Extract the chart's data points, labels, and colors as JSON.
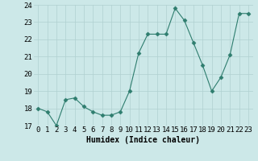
{
  "x": [
    0,
    1,
    2,
    3,
    4,
    5,
    6,
    7,
    8,
    9,
    10,
    11,
    12,
    13,
    14,
    15,
    16,
    17,
    18,
    19,
    20,
    21,
    22,
    23
  ],
  "y": [
    18.0,
    17.8,
    17.0,
    18.5,
    18.6,
    18.1,
    17.8,
    17.6,
    17.6,
    17.8,
    19.0,
    21.2,
    22.3,
    22.3,
    22.3,
    23.8,
    23.1,
    21.8,
    20.5,
    19.0,
    19.8,
    21.1,
    23.5,
    23.5
  ],
  "xlabel": "Humidex (Indice chaleur)",
  "ylim": [
    17,
    24
  ],
  "xlim": [
    -0.5,
    23.5
  ],
  "yticks": [
    17,
    18,
    19,
    20,
    21,
    22,
    23,
    24
  ],
  "xticks": [
    0,
    1,
    2,
    3,
    4,
    5,
    6,
    7,
    8,
    9,
    10,
    11,
    12,
    13,
    14,
    15,
    16,
    17,
    18,
    19,
    20,
    21,
    22,
    23
  ],
  "line_color": "#2e7d6e",
  "marker": "D",
  "marker_size": 2.5,
  "bg_color": "#cce8e8",
  "grid_color": "#b0d0d0",
  "label_fontsize": 7,
  "tick_fontsize": 6.5
}
